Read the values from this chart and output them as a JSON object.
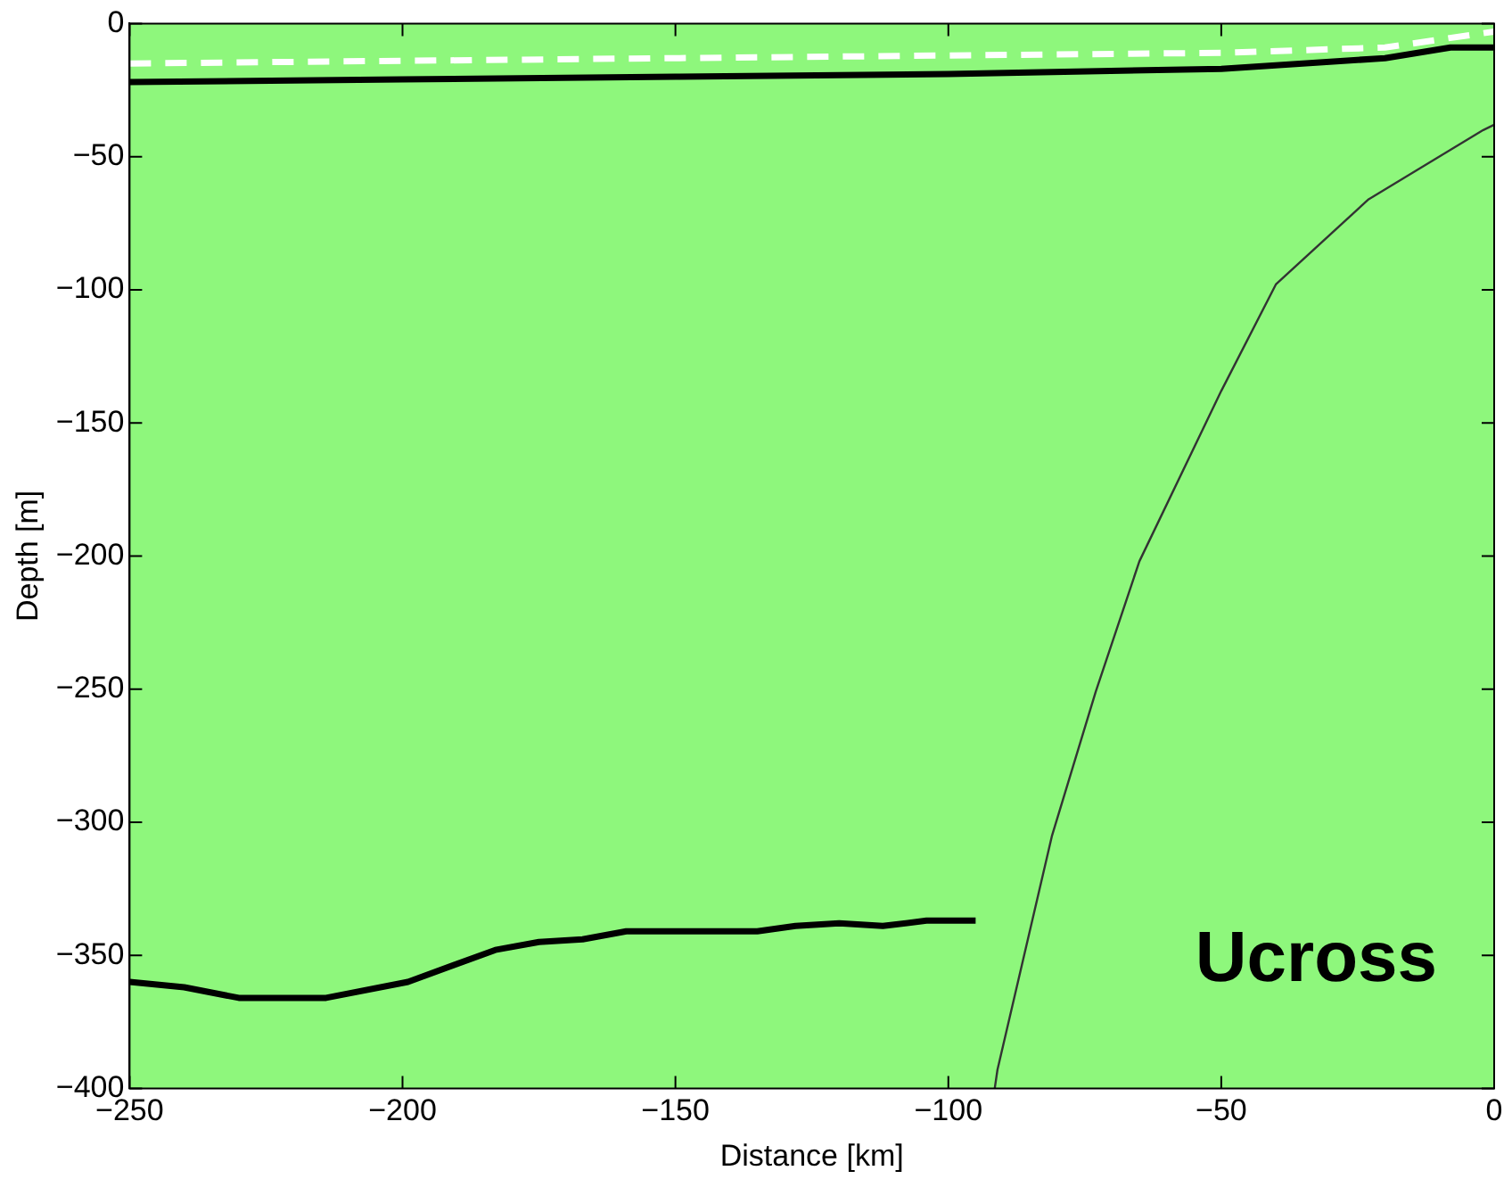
{
  "chart_data": {
    "type": "line",
    "xlabel": "Distance [km]",
    "ylabel": "Depth [m]",
    "xlim": [
      -250,
      0
    ],
    "xticks": [
      -250,
      -200,
      -150,
      -100,
      -50,
      0
    ],
    "ylim": [
      -400,
      0
    ],
    "yticks": [
      -400,
      -350,
      -300,
      -250,
      -200,
      -150,
      -100,
      -50,
      0
    ],
    "grid": false,
    "legend": false,
    "marker": "none",
    "annotations": [
      "Ucross"
    ],
    "series": [
      {
        "color": "#000000",
        "line_style": "solid",
        "x": [
          -250,
          -200,
          -150,
          -100,
          -50,
          -20,
          -8,
          0
        ],
        "values": [
          -22,
          -21,
          -20,
          -19,
          -17,
          -13,
          -9,
          -9
        ]
      },
      {
        "color": "#ffffff",
        "line_style": "dashed",
        "x": [
          -250,
          -150,
          -50,
          -20,
          0
        ],
        "values": [
          -15,
          -13,
          -11,
          -9,
          -3
        ]
      },
      {
        "color": "#000000",
        "line_style": "solid",
        "x": [
          -250,
          -240,
          -230,
          -214,
          -199,
          -183,
          -175,
          -167,
          -159,
          -151,
          -135,
          -128,
          -120,
          -112,
          -104,
          -95
        ],
        "values": [
          -360,
          -362,
          -366,
          -366,
          -360,
          -348,
          -345,
          -344,
          -341,
          -341,
          -341,
          -339,
          -338,
          -339,
          -337,
          -337
        ]
      },
      {
        "color": "#333333",
        "line_style": "solid",
        "x": [
          0,
          -2,
          -23,
          -40,
          -50,
          -65,
          -73,
          -81,
          -91,
          -91.5
        ],
        "values": [
          -38,
          -40,
          -66,
          -98,
          -138,
          -202,
          -251,
          -305,
          -393,
          -400
        ]
      }
    ]
  }
}
